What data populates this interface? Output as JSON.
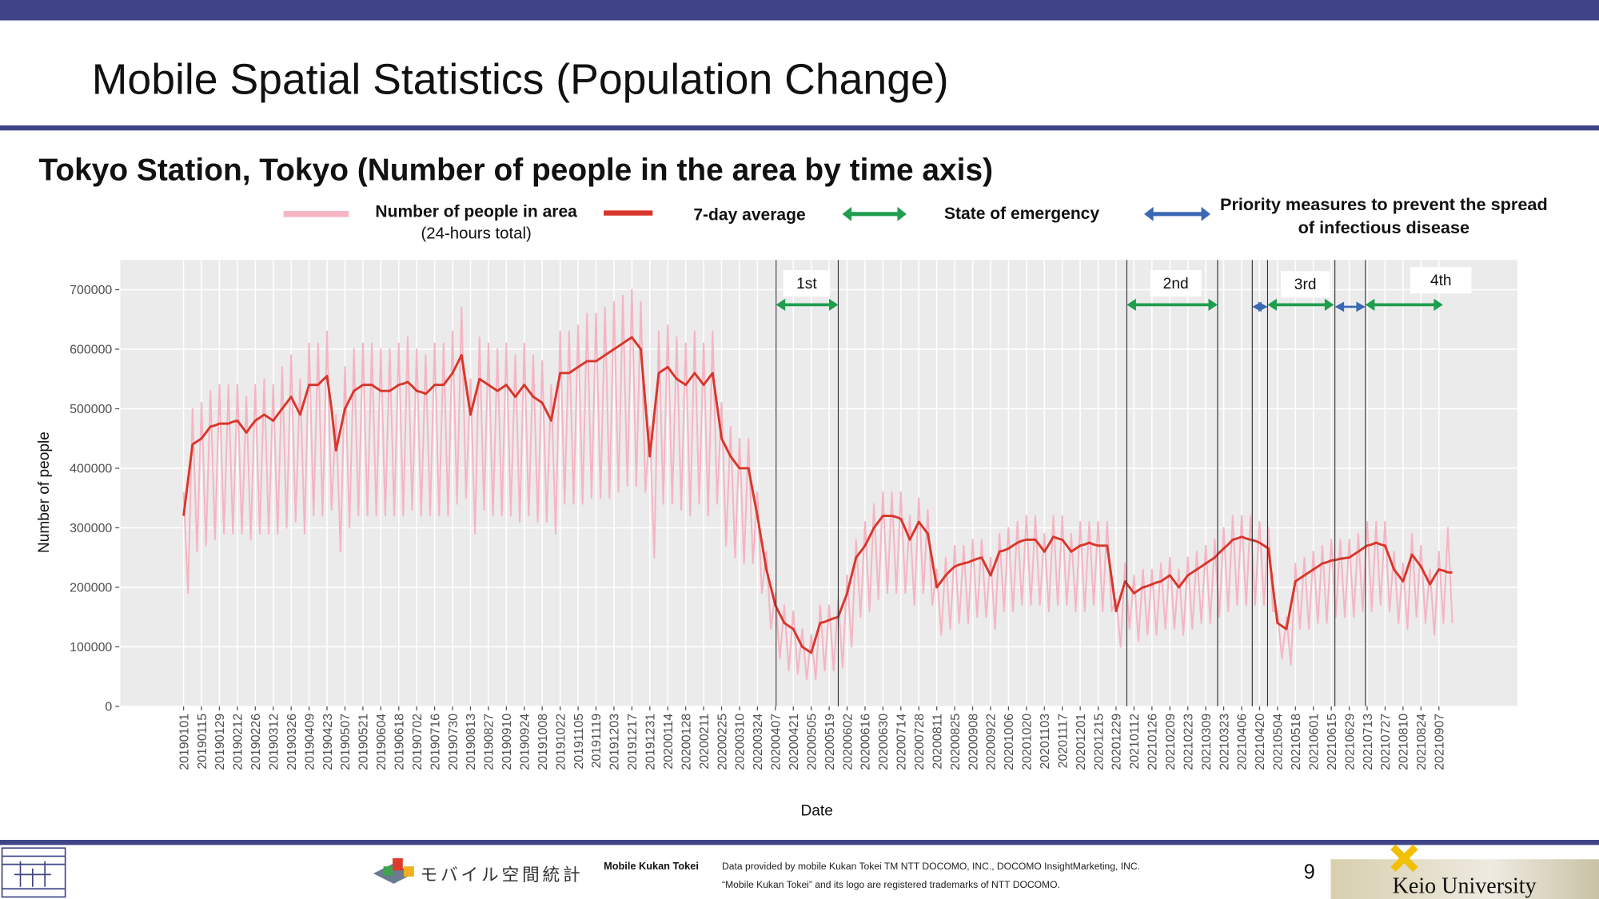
{
  "slide": {
    "title": "Mobile Spatial Statistics (Population Change)",
    "page_number": 9
  },
  "footer": {
    "logo_text": "モバイル空間統計",
    "brand": "Mobile Kukan Tokei",
    "credit": "Data provided by mobile Kukan Tokei TM NTT DOCOMO, INC., DOCOMO InsightMarketing, INC.",
    "trademark": "“Mobile Kukan Tokei” and its logo are registered trademarks of NTT DOCOMO.",
    "university": "Keio University"
  },
  "chart_data": {
    "type": "line",
    "title": "Tokyo Station, Tokyo (Number of people in the area by time axis)",
    "x_label": "Date",
    "y_label": "Number of people",
    "categories": [
      "20190101",
      null,
      null,
      null,
      "20190115",
      null,
      null,
      null,
      "20190129",
      null,
      null,
      null,
      "20190212",
      null,
      null,
      null,
      "20190226",
      null,
      null,
      null,
      "20190312",
      null,
      null,
      null,
      "20190326",
      null,
      null,
      null,
      "20190409",
      null,
      null,
      null,
      "20190423",
      null,
      null,
      null,
      "20190507",
      null,
      null,
      null,
      "20190521",
      null,
      null,
      null,
      "20190604",
      null,
      null,
      null,
      "20190618",
      null,
      null,
      null,
      "20190702",
      null,
      null,
      null,
      "20190716",
      null,
      null,
      null,
      "20190730",
      null,
      null,
      null,
      "20190813",
      null,
      null,
      null,
      "20190827",
      null,
      null,
      null,
      "20190910",
      null,
      null,
      null,
      "20190924",
      null,
      null,
      null,
      "20191008",
      null,
      null,
      null,
      "20191022",
      null,
      null,
      null,
      "20191105",
      null,
      null,
      null,
      "20191119",
      null,
      null,
      null,
      "20191203",
      null,
      null,
      null,
      "20191217",
      null,
      null,
      null,
      "20191231",
      null,
      null,
      null,
      "20200114",
      null,
      null,
      null,
      "20200128",
      null,
      null,
      null,
      "20200211",
      null,
      null,
      null,
      "20200225",
      null,
      null,
      null,
      "20200310",
      null,
      null,
      null,
      "20200324",
      null,
      null,
      null,
      "20200407",
      null,
      null,
      null,
      "20200421",
      null,
      null,
      null,
      "20200505",
      null,
      null,
      null,
      "20200519",
      null,
      null,
      null,
      "20200602",
      null,
      null,
      null,
      "20200616",
      null,
      null,
      null,
      "20200630",
      null,
      null,
      null,
      "20200714",
      null,
      null,
      null,
      "20200728",
      null,
      null,
      null,
      "20200811",
      null,
      null,
      null,
      "20200825",
      null,
      null,
      null,
      "20200908",
      null,
      null,
      null,
      "20200922",
      null,
      null,
      null,
      "20201006",
      null,
      null,
      null,
      "20201020",
      null,
      null,
      null,
      "20201103",
      null,
      null,
      null,
      "20201117",
      null,
      null,
      null,
      "20201201",
      null,
      null,
      null,
      "20201215",
      null,
      null,
      null,
      "20201229",
      null,
      null,
      null,
      "20210112",
      null,
      null,
      null,
      "20210126",
      null,
      null,
      null,
      "20210209",
      null,
      null,
      null,
      "20210223",
      null,
      null,
      null,
      "20210309",
      null,
      null,
      null,
      "20210323",
      null,
      null,
      null,
      "20210406",
      null,
      null,
      null,
      "20210420",
      null,
      null,
      null,
      "20210504",
      null,
      null,
      null,
      "20210518",
      null,
      null,
      null,
      "20210601",
      null,
      null,
      null,
      "20210615",
      null,
      null,
      null,
      "20210629",
      null,
      null,
      null,
      "20210713",
      null,
      null,
      null,
      "20210727",
      null,
      null,
      null,
      "20210810",
      null,
      null,
      null,
      "20210824",
      null,
      null,
      null,
      "20210907",
      null,
      null,
      null
    ],
    "series": [
      {
        "name": "Number of people in area",
        "note": "(24-hours total)",
        "color": "#f5b5c3",
        "values": [
          360000,
          190000,
          500000,
          260000,
          510000,
          270000,
          530000,
          280000,
          540000,
          290000,
          540000,
          290000,
          540000,
          290000,
          520000,
          280000,
          540000,
          290000,
          550000,
          290000,
          540000,
          290000,
          570000,
          300000,
          590000,
          310000,
          550000,
          290000,
          610000,
          320000,
          610000,
          320000,
          630000,
          330000,
          490000,
          260000,
          570000,
          300000,
          600000,
          320000,
          610000,
          320000,
          610000,
          320000,
          600000,
          320000,
          600000,
          320000,
          610000,
          320000,
          620000,
          330000,
          600000,
          320000,
          590000,
          320000,
          610000,
          320000,
          610000,
          320000,
          630000,
          340000,
          670000,
          350000,
          550000,
          290000,
          620000,
          330000,
          610000,
          320000,
          600000,
          320000,
          610000,
          320000,
          590000,
          310000,
          610000,
          320000,
          590000,
          310000,
          580000,
          310000,
          540000,
          290000,
          630000,
          340000,
          630000,
          340000,
          640000,
          340000,
          660000,
          350000,
          660000,
          350000,
          670000,
          350000,
          680000,
          360000,
          690000,
          370000,
          700000,
          370000,
          680000,
          360000,
          470000,
          250000,
          630000,
          340000,
          640000,
          340000,
          620000,
          330000,
          610000,
          320000,
          630000,
          340000,
          610000,
          320000,
          630000,
          340000,
          510000,
          270000,
          470000,
          250000,
          450000,
          240000,
          450000,
          240000,
          360000,
          190000,
          260000,
          130000,
          190000,
          80000,
          170000,
          60000,
          160000,
          55000,
          130000,
          45000,
          120000,
          45000,
          170000,
          60000,
          170000,
          60000,
          180000,
          65000,
          220000,
          100000,
          280000,
          150000,
          310000,
          160000,
          340000,
          180000,
          360000,
          190000,
          360000,
          190000,
          360000,
          190000,
          320000,
          170000,
          350000,
          190000,
          330000,
          170000,
          230000,
          120000,
          250000,
          130000,
          270000,
          140000,
          270000,
          140000,
          280000,
          150000,
          280000,
          150000,
          250000,
          130000,
          290000,
          160000,
          300000,
          160000,
          310000,
          170000,
          320000,
          170000,
          320000,
          170000,
          290000,
          160000,
          320000,
          170000,
          320000,
          170000,
          290000,
          160000,
          310000,
          160000,
          310000,
          170000,
          310000,
          160000,
          310000,
          160000,
          180000,
          100000,
          240000,
          130000,
          220000,
          110000,
          230000,
          120000,
          230000,
          120000,
          240000,
          130000,
          250000,
          130000,
          230000,
          120000,
          250000,
          130000,
          260000,
          140000,
          270000,
          140000,
          280000,
          150000,
          300000,
          160000,
          320000,
          170000,
          320000,
          170000,
          320000,
          170000,
          310000,
          170000,
          300000,
          160000,
          160000,
          80000,
          150000,
          70000,
          240000,
          130000,
          250000,
          130000,
          260000,
          140000,
          270000,
          140000,
          280000,
          150000,
          280000,
          150000,
          280000,
          150000,
          290000,
          160000,
          310000,
          160000,
          310000,
          170000,
          310000,
          160000,
          260000,
          140000,
          240000,
          130000,
          290000,
          150000,
          270000,
          140000,
          230000,
          120000,
          260000,
          140000,
          300000,
          140000
        ]
      },
      {
        "name": "7-day average",
        "color": "#d9362b",
        "values": [
          320000,
          380000,
          440000,
          445000,
          450000,
          460000,
          470000,
          472000,
          475000,
          475000,
          475000,
          478000,
          480000,
          470000,
          460000,
          470000,
          480000,
          485000,
          490000,
          485000,
          480000,
          490000,
          500000,
          510000,
          520000,
          505000,
          490000,
          515000,
          540000,
          540000,
          540000,
          548000,
          555000,
          500000,
          430000,
          465000,
          500000,
          515000,
          530000,
          535000,
          540000,
          540000,
          540000,
          535000,
          530000,
          530000,
          530000,
          535000,
          540000,
          542000,
          545000,
          538000,
          530000,
          528000,
          525000,
          532000,
          540000,
          540000,
          540000,
          550000,
          560000,
          575000,
          590000,
          540000,
          490000,
          520000,
          550000,
          545000,
          540000,
          535000,
          530000,
          535000,
          540000,
          530000,
          520000,
          530000,
          540000,
          530000,
          520000,
          515000,
          510000,
          495000,
          480000,
          520000,
          560000,
          560000,
          560000,
          565000,
          570000,
          575000,
          580000,
          580000,
          580000,
          585000,
          590000,
          595000,
          600000,
          605000,
          610000,
          615000,
          620000,
          610000,
          600000,
          510000,
          420000,
          490000,
          560000,
          565000,
          570000,
          560000,
          550000,
          545000,
          540000,
          550000,
          560000,
          550000,
          540000,
          550000,
          560000,
          505000,
          450000,
          435000,
          420000,
          410000,
          400000,
          400000,
          400000,
          360000,
          320000,
          275000,
          230000,
          200000,
          170000,
          155000,
          140000,
          135000,
          130000,
          115000,
          100000,
          95000,
          90000,
          115000,
          140000,
          142000,
          145000,
          148000,
          150000,
          170000,
          190000,
          220000,
          250000,
          260000,
          270000,
          285000,
          300000,
          310000,
          320000,
          320000,
          320000,
          318000,
          315000,
          298000,
          280000,
          295000,
          310000,
          300000,
          290000,
          245000,
          200000,
          210000,
          220000,
          228000,
          235000,
          238000,
          240000,
          242000,
          245000,
          248000,
          250000,
          235000,
          220000,
          240000,
          260000,
          262000,
          265000,
          270000,
          275000,
          278000,
          280000,
          280000,
          280000,
          270000,
          260000,
          272000,
          285000,
          282000,
          280000,
          270000,
          260000,
          265000,
          270000,
          272000,
          275000,
          272000,
          270000,
          270000,
          270000,
          215000,
          160000,
          185000,
          210000,
          200000,
          190000,
          195000,
          200000,
          202000,
          205000,
          208000,
          210000,
          215000,
          220000,
          210000,
          200000,
          210000,
          220000,
          225000,
          230000,
          235000,
          240000,
          245000,
          250000,
          258000,
          265000,
          272000,
          280000,
          282000,
          285000,
          282000,
          280000,
          278000,
          275000,
          270000,
          265000,
          200000,
          140000,
          135000,
          130000,
          170000,
          210000,
          215000,
          220000,
          225000,
          230000,
          235000,
          240000,
          242000,
          245000,
          246000,
          248000,
          249000,
          250000,
          255000,
          260000,
          265000,
          270000,
          272000,
          275000,
          272000,
          270000,
          250000,
          230000,
          220000,
          210000,
          232000,
          255000,
          245000,
          235000,
          220000,
          205000,
          218000,
          230000,
          228000,
          225000,
          225000
        ]
      }
    ],
    "ylim": [
      0,
      750000
    ],
    "yticks": [
      0,
      100000,
      200000,
      300000,
      400000,
      500000,
      600000,
      700000
    ],
    "grid": true,
    "period_labels": [
      "1st",
      "2nd",
      "3rd",
      "4th"
    ],
    "measures": [
      {
        "name": "State of emergency",
        "color": "#1e9e4e"
      },
      {
        "name": "Priority measures to prevent the spread of infectious disease",
        "color": "#3b68b5"
      }
    ]
  }
}
